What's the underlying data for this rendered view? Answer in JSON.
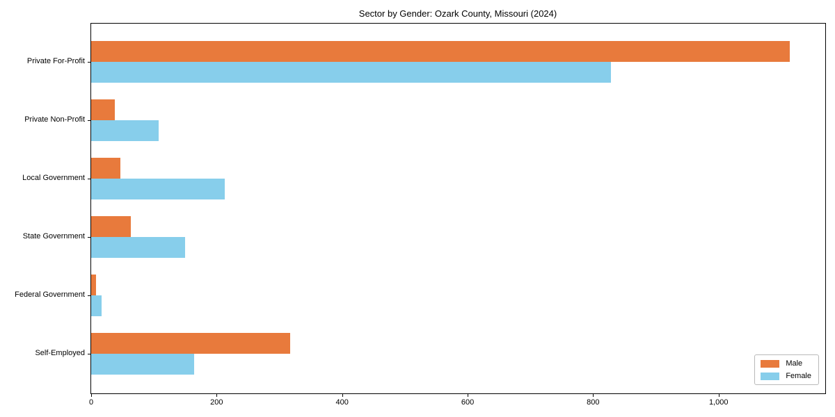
{
  "chart_data": {
    "type": "bar",
    "orientation": "horizontal",
    "title": "Sector by Gender: Ozark County, Missouri (2024)",
    "categories": [
      "Private For-Profit",
      "Private Non-Profit",
      "Local Government",
      "State Government",
      "Federal Government",
      "Self-Employed"
    ],
    "series": [
      {
        "name": "Male",
        "color": "#e87a3c",
        "values": [
          1113,
          38,
          47,
          63,
          8,
          317
        ]
      },
      {
        "name": "Female",
        "color": "#87ceeb",
        "values": [
          828,
          108,
          213,
          150,
          17,
          164
        ]
      }
    ],
    "xlabel": "",
    "ylabel": "",
    "xlim": [
      0,
      1170
    ],
    "x_ticks": [
      0,
      200,
      400,
      600,
      800,
      1000
    ],
    "x_tick_labels": [
      "0",
      "200",
      "400",
      "600",
      "800",
      "1,000"
    ],
    "grid": false,
    "legend_position": "lower right"
  },
  "colors": {
    "spine": "#000000",
    "background": "#ffffff",
    "legend_border": "#b9b9b9"
  }
}
